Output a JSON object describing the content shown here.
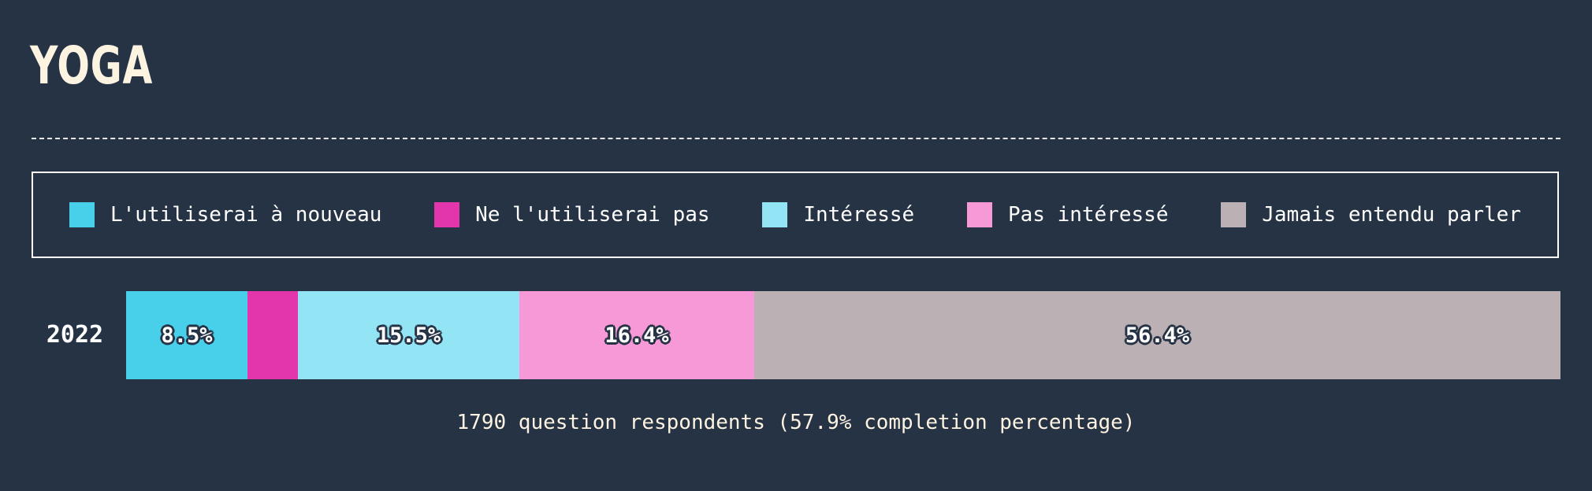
{
  "chart_data": {
    "type": "bar",
    "orientation": "horizontal-stacked",
    "title": "YOGA",
    "categories": [
      "2022"
    ],
    "series": [
      {
        "name": "L'utiliserai à nouveau",
        "values": [
          8.5
        ],
        "color": "#48cfea",
        "label": "8.5%"
      },
      {
        "name": "Ne l'utiliserai pas",
        "values": [
          3.5
        ],
        "color": "#e336ad",
        "label": ""
      },
      {
        "name": "Intéressé",
        "values": [
          15.5
        ],
        "color": "#93e5f6",
        "label": "15.5%"
      },
      {
        "name": "Pas intéressé",
        "values": [
          16.4
        ],
        "color": "#f799d6",
        "label": "16.4%"
      },
      {
        "name": "Jamais entendu parler",
        "values": [
          56.4
        ],
        "color": "#bbb0b4",
        "label": "56.4%"
      }
    ],
    "xlim": [
      0,
      100.3
    ],
    "units": "%",
    "legend_position": "top"
  },
  "footnote": "1790 question respondents (57.9% completion percentage)",
  "colors": {
    "background": "#263345",
    "title": "#fdf3e1",
    "text": "#ffffff"
  }
}
